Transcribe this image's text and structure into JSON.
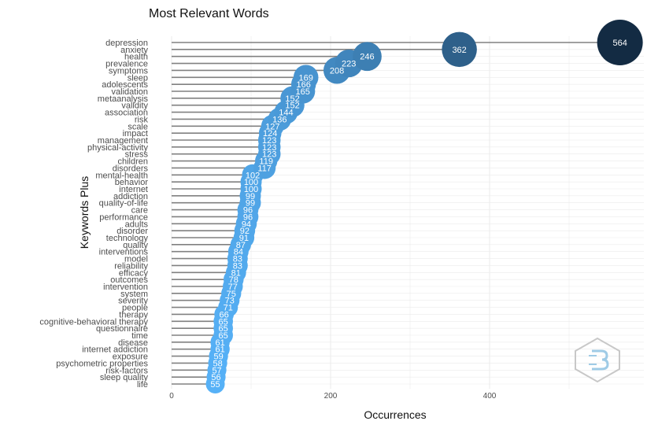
{
  "chart_data": {
    "type": "scatter",
    "title": "Most Relevant Words",
    "xlabel": "Occurrences",
    "ylabel": "Keywords Plus",
    "xlim": [
      0,
      590
    ],
    "xticks": [
      0,
      200,
      400
    ],
    "grid": true,
    "legend": "none",
    "colors": {
      "low": "#56B1F7",
      "high": "#132B43",
      "stem": "#808080",
      "grid": "#ebebeb"
    },
    "points": [
      {
        "word": "depression",
        "value": 564
      },
      {
        "word": "anxiety",
        "value": 362
      },
      {
        "word": "health",
        "value": 246
      },
      {
        "word": "prevalence",
        "value": 223
      },
      {
        "word": "symptoms",
        "value": 208
      },
      {
        "word": "sleep",
        "value": 169
      },
      {
        "word": "adolescents",
        "value": 166
      },
      {
        "word": "validation",
        "value": 165
      },
      {
        "word": "metaanalysis",
        "value": 152
      },
      {
        "word": "validity",
        "value": 152
      },
      {
        "word": "association",
        "value": 144
      },
      {
        "word": "risk",
        "value": 136
      },
      {
        "word": "scale",
        "value": 127
      },
      {
        "word": "impact",
        "value": 124
      },
      {
        "word": "management",
        "value": 123
      },
      {
        "word": "physical-activity",
        "value": 123
      },
      {
        "word": "stress",
        "value": 123
      },
      {
        "word": "children",
        "value": 119
      },
      {
        "word": "disorders",
        "value": 117
      },
      {
        "word": "mental-health",
        "value": 102
      },
      {
        "word": "behavior",
        "value": 100
      },
      {
        "word": "internet",
        "value": 100
      },
      {
        "word": "addiction",
        "value": 99
      },
      {
        "word": "quality-of-life",
        "value": 99
      },
      {
        "word": "care",
        "value": 96
      },
      {
        "word": "performance",
        "value": 96
      },
      {
        "word": "adults",
        "value": 94
      },
      {
        "word": "disorder",
        "value": 92
      },
      {
        "word": "technology",
        "value": 91
      },
      {
        "word": "quality",
        "value": 87
      },
      {
        "word": "interventions",
        "value": 84
      },
      {
        "word": "model",
        "value": 83
      },
      {
        "word": "reliability",
        "value": 83
      },
      {
        "word": "efficacy",
        "value": 81
      },
      {
        "word": "outcomes",
        "value": 78
      },
      {
        "word": "intervention",
        "value": 77
      },
      {
        "word": "system",
        "value": 75
      },
      {
        "word": "severity",
        "value": 73
      },
      {
        "word": "people",
        "value": 71
      },
      {
        "word": "therapy",
        "value": 66
      },
      {
        "word": "cognitive-behavioral therapy",
        "value": 65
      },
      {
        "word": "questionnaire",
        "value": 65
      },
      {
        "word": "time",
        "value": 65
      },
      {
        "word": "disease",
        "value": 61
      },
      {
        "word": "internet addiction",
        "value": 61
      },
      {
        "word": "exposure",
        "value": 59
      },
      {
        "word": "psychometric properties",
        "value": 58
      },
      {
        "word": "risk-factors",
        "value": 57
      },
      {
        "word": "sleep quality",
        "value": 56
      },
      {
        "word": "life",
        "value": 55
      }
    ]
  }
}
